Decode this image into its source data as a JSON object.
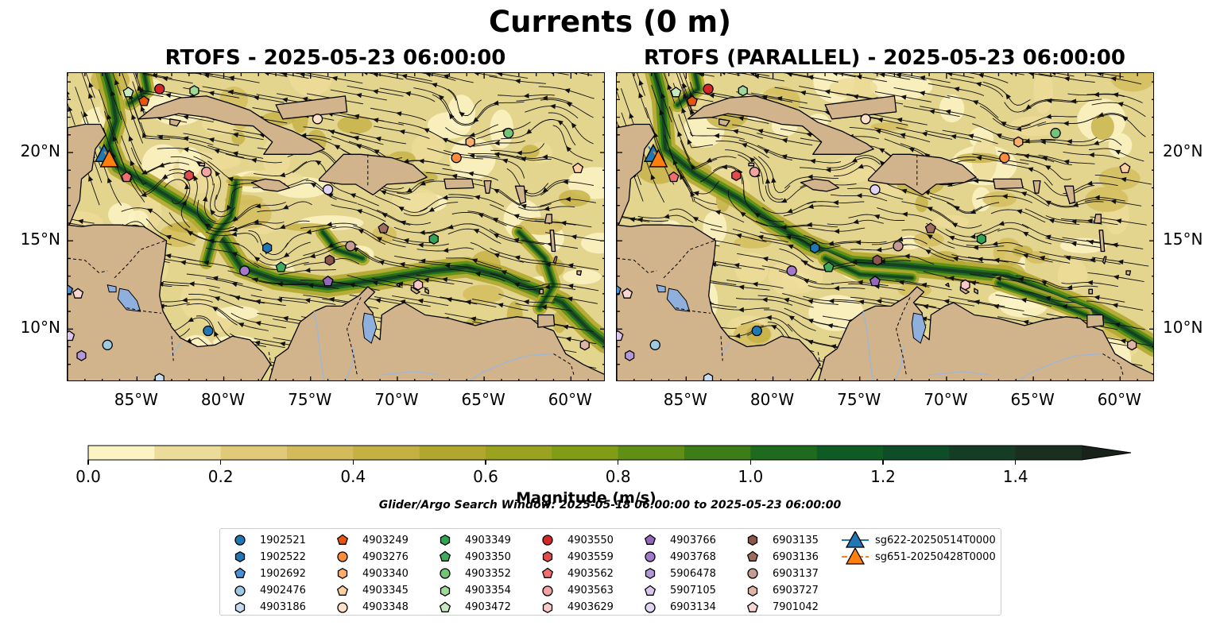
{
  "figure": {
    "suptitle": "Currents (0 m)",
    "panels": [
      {
        "title": "RTOFS - 2025-05-23 06:00:00"
      },
      {
        "title": "RTOFS (PARALLEL) - 2025-05-23 06:00:00"
      }
    ],
    "x_ticks": [
      "85°W",
      "80°W",
      "75°W",
      "70°W",
      "65°W",
      "60°W"
    ],
    "y_ticks": [
      "20°N",
      "15°N",
      "10°N"
    ],
    "colorbar": {
      "label": "Magnitude (m/s)",
      "ticks": [
        "0.0",
        "0.2",
        "0.4",
        "0.6",
        "0.8",
        "1.0",
        "1.2",
        "1.4"
      ],
      "colors": [
        "#fbf3c4",
        "#ecdc99",
        "#e0c978",
        "#d3bb5b",
        "#c4b043",
        "#b1a72f",
        "#9ba21f",
        "#819c15",
        "#5f8f14",
        "#3c7d17",
        "#1f6b1d",
        "#0f5b24",
        "#0e4d28",
        "#153d25",
        "#1a2f1f",
        "#18211a"
      ]
    },
    "search_window": "Glider/Argo Search Window: 2025-05-18 06:00:00 to 2025-05-23 06:00:00",
    "colors": {
      "land": "#d2b48c",
      "ocean_base": "#e3d48e",
      "lake": "#8fb0dc",
      "river": "#9fb6d6"
    }
  },
  "chart_data": {
    "type": "map",
    "extent": {
      "lon": [
        -89.0,
        -58.0
      ],
      "lat": [
        7.0,
        24.5
      ]
    },
    "variable": "surface current magnitude (m/s)",
    "color_range": [
      0.0,
      1.5
    ],
    "floats": [
      {
        "id": "1902521",
        "marker": "circle",
        "color": "#1f77b4",
        "lon": -80.9,
        "lat": 9.9
      },
      {
        "id": "1902522",
        "marker": "hexagon",
        "color": "#1f77b4",
        "lon": -77.5,
        "lat": 14.6
      },
      {
        "id": "1902692",
        "marker": "pentagon",
        "color": "#4a90d9",
        "lon": -89.0,
        "lat": 12.2
      },
      {
        "id": "4902476",
        "marker": "circle",
        "color": "#9ecae1",
        "lon": -86.7,
        "lat": 9.1
      },
      {
        "id": "4903186",
        "marker": "hexagon",
        "color": "#c6dbef",
        "lon": -83.7,
        "lat": 7.2
      },
      {
        "id": "4903249",
        "marker": "pentagon",
        "color": "#e6550d",
        "lon": -84.6,
        "lat": 22.9
      },
      {
        "id": "4903276",
        "marker": "circle",
        "color": "#fd8d3c",
        "lon": -66.6,
        "lat": 19.7
      },
      {
        "id": "4903340",
        "marker": "hexagon",
        "color": "#fdae6b",
        "lon": -65.8,
        "lat": 20.6
      },
      {
        "id": "4903345",
        "marker": "pentagon",
        "color": "#fdd0a2",
        "lon": -59.6,
        "lat": 19.1
      },
      {
        "id": "4903348",
        "marker": "circle",
        "color": "#fde0c5",
        "lon": -74.6,
        "lat": 21.9
      },
      {
        "id": "4903349",
        "marker": "hexagon",
        "color": "#31a354",
        "lon": -67.9,
        "lat": 15.1
      },
      {
        "id": "4903350",
        "marker": "pentagon",
        "color": "#41ab5d",
        "lon": -76.7,
        "lat": 13.5
      },
      {
        "id": "4903352",
        "marker": "circle",
        "color": "#74c476",
        "lon": -63.6,
        "lat": 21.1
      },
      {
        "id": "4903354",
        "marker": "hexagon",
        "color": "#a1d99b",
        "lon": -81.7,
        "lat": 23.5
      },
      {
        "id": "4903472",
        "marker": "pentagon",
        "color": "#c7e9c0",
        "lon": -85.5,
        "lat": 23.4
      },
      {
        "id": "4903550",
        "marker": "circle",
        "color": "#d62728",
        "lon": -83.7,
        "lat": 23.6
      },
      {
        "id": "4903559",
        "marker": "hexagon",
        "color": "#e34a4a",
        "lon": -82.0,
        "lat": 18.7
      },
      {
        "id": "4903562",
        "marker": "pentagon",
        "color": "#ef6f6f",
        "lon": -85.6,
        "lat": 18.6
      },
      {
        "id": "4903563",
        "marker": "circle",
        "color": "#f4a3a3",
        "lon": -81.0,
        "lat": 18.9
      },
      {
        "id": "4903629",
        "marker": "hexagon",
        "color": "#f9c8c8",
        "lon": -68.8,
        "lat": 12.5
      },
      {
        "id": "4903766",
        "marker": "pentagon",
        "color": "#9467bd",
        "lon": -74.0,
        "lat": 12.7
      },
      {
        "id": "4903768",
        "marker": "circle",
        "color": "#a678cc",
        "lon": -78.8,
        "lat": 13.3
      },
      {
        "id": "5906478",
        "marker": "hexagon",
        "color": "#b497d6",
        "lon": -88.2,
        "lat": 8.5
      },
      {
        "id": "5907105",
        "marker": "pentagon",
        "color": "#dcc6f0",
        "lon": -88.9,
        "lat": 9.6
      },
      {
        "id": "6903134",
        "marker": "circle",
        "color": "#e2d4f5",
        "lon": -74.0,
        "lat": 17.9
      },
      {
        "id": "6903135",
        "marker": "hexagon",
        "color": "#8c564b",
        "lon": -73.9,
        "lat": 13.9
      },
      {
        "id": "6903136",
        "marker": "pentagon",
        "color": "#9e6d5e",
        "lon": -70.8,
        "lat": 15.7
      },
      {
        "id": "6903137",
        "marker": "circle",
        "color": "#c49c94",
        "lon": -72.7,
        "lat": 14.7
      },
      {
        "id": "6903727",
        "marker": "hexagon",
        "color": "#e0b4a4",
        "lon": -59.2,
        "lat": 9.1
      },
      {
        "id": "7901042",
        "marker": "pentagon",
        "color": "#f7d5d0",
        "lon": -88.4,
        "lat": 12.0
      }
    ],
    "gliders": [
      {
        "id": "sg622-20250514T0000",
        "color": "#1f77b4",
        "lon": -86.9,
        "lat": 19.9
      },
      {
        "id": "sg651-20250428T0000",
        "color": "#ff7f0e",
        "lon": -86.6,
        "lat": 19.6
      }
    ]
  },
  "legend": {
    "entries": [
      "1902521",
      "1902522",
      "1902692",
      "4902476",
      "4903186",
      "4903249",
      "4903276",
      "4903340",
      "4903345",
      "4903348",
      "4903349",
      "4903350",
      "4903352",
      "4903354",
      "4903472",
      "4903550",
      "4903559",
      "4903562",
      "4903563",
      "4903629",
      "4903766",
      "4903768",
      "5906478",
      "5907105",
      "6903134",
      "6903135",
      "6903136",
      "6903137",
      "6903727",
      "7901042",
      "sg622-20250514T0000",
      "sg651-20250428T0000"
    ]
  }
}
